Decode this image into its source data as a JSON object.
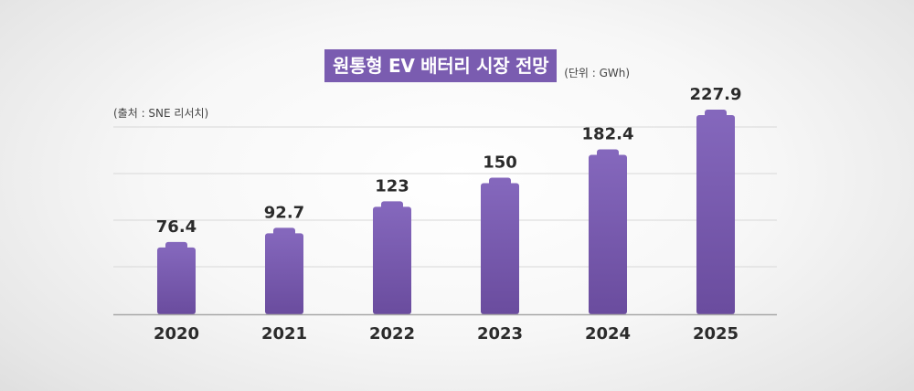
{
  "chart_data": {
    "type": "bar",
    "title": "원통형 EV 배터리 시장 전망",
    "unit": "(단위 : GWh)",
    "source": "(출처 : SNE 리서치)",
    "categories": [
      "2020",
      "2021",
      "2022",
      "2023",
      "2024",
      "2025"
    ],
    "values": [
      76.4,
      92.7,
      123,
      150,
      182.4,
      227.9
    ],
    "value_labels": [
      "76.4",
      "92.7",
      "123",
      "150",
      "182.4",
      "227.9"
    ],
    "ylim": [
      0,
      227.9
    ],
    "grid": true,
    "colors": {
      "bar_top": "#8467bc",
      "bar_bottom": "#6a4c9e",
      "title_bg": "#7a5cb0",
      "grid": "#d8d8d8",
      "axis": "#a8a8a8"
    }
  }
}
